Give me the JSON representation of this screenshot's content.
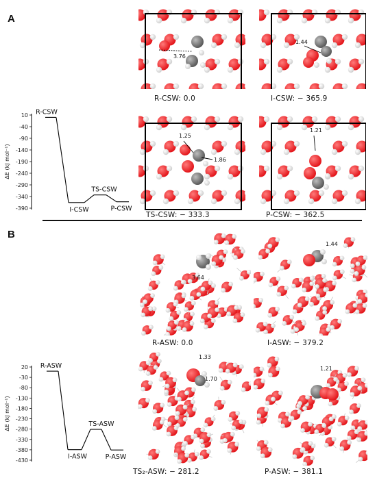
{
  "panels": [
    {
      "letter": "A",
      "chart_data": {
        "type": "line",
        "categories": [
          "R-CSW",
          "I-CSW",
          "TS-CSW",
          "P-CSW"
        ],
        "values": [
          0.0,
          -365.9,
          -333.3,
          -362.5
        ],
        "xlabel": "",
        "ylabel": "ΔE (kJ mol⁻¹)",
        "yticks": [
          "10",
          "-40",
          "-90",
          "-140",
          "-190",
          "-240",
          "-290",
          "-340",
          "-390"
        ],
        "ylim": [
          -390,
          10
        ],
        "label_side": [
          "above",
          "below",
          "above",
          "below"
        ]
      },
      "structures": [
        {
          "caption": "R-CSW: 0.0",
          "framed": true,
          "measurements": [
            "3.76"
          ]
        },
        {
          "caption": "I-CSW: − 365.9",
          "framed": true,
          "measurements": [
            "1.44"
          ]
        },
        {
          "caption": "TS-CSW: − 333.3",
          "framed": true,
          "measurements": [
            "1.25",
            "1.86"
          ]
        },
        {
          "caption": "P-CSW: − 362.5",
          "framed": true,
          "measurements": [
            "1.21"
          ]
        }
      ]
    },
    {
      "letter": "B",
      "chart_data": {
        "type": "line",
        "categories": [
          "R-ASW",
          "I-ASW",
          "TS-ASW",
          "P-ASW"
        ],
        "values": [
          0.0,
          -379.2,
          -281.2,
          -381.1
        ],
        "xlabel": "",
        "ylabel": "ΔE (kJ mol⁻¹)",
        "yticks": [
          "20",
          "-30",
          "-80",
          "-130",
          "-180",
          "-230",
          "-280",
          "-330",
          "-380",
          "-430"
        ],
        "ylim": [
          -430,
          20
        ],
        "label_side": [
          "above",
          "below",
          "above",
          "below"
        ]
      },
      "structures": [
        {
          "caption": "R-ASW: 0.0",
          "framed": false,
          "measurements": [
            "3.64"
          ]
        },
        {
          "caption": "I-ASW: − 379.2",
          "framed": false,
          "measurements": [
            "1.44"
          ]
        },
        {
          "caption": "TS₂-ASW: − 281.2",
          "framed": false,
          "measurements": [
            "1.33",
            "1.70"
          ]
        },
        {
          "caption": "P-ASW: − 381.1",
          "framed": false,
          "measurements": [
            "1.21"
          ]
        }
      ]
    }
  ],
  "colors": {
    "oxygen": "#e3161b",
    "hydrogen": "#f2f2f2",
    "carbon": "#7a7a7a",
    "frame": "#000000",
    "line": "#000000"
  }
}
